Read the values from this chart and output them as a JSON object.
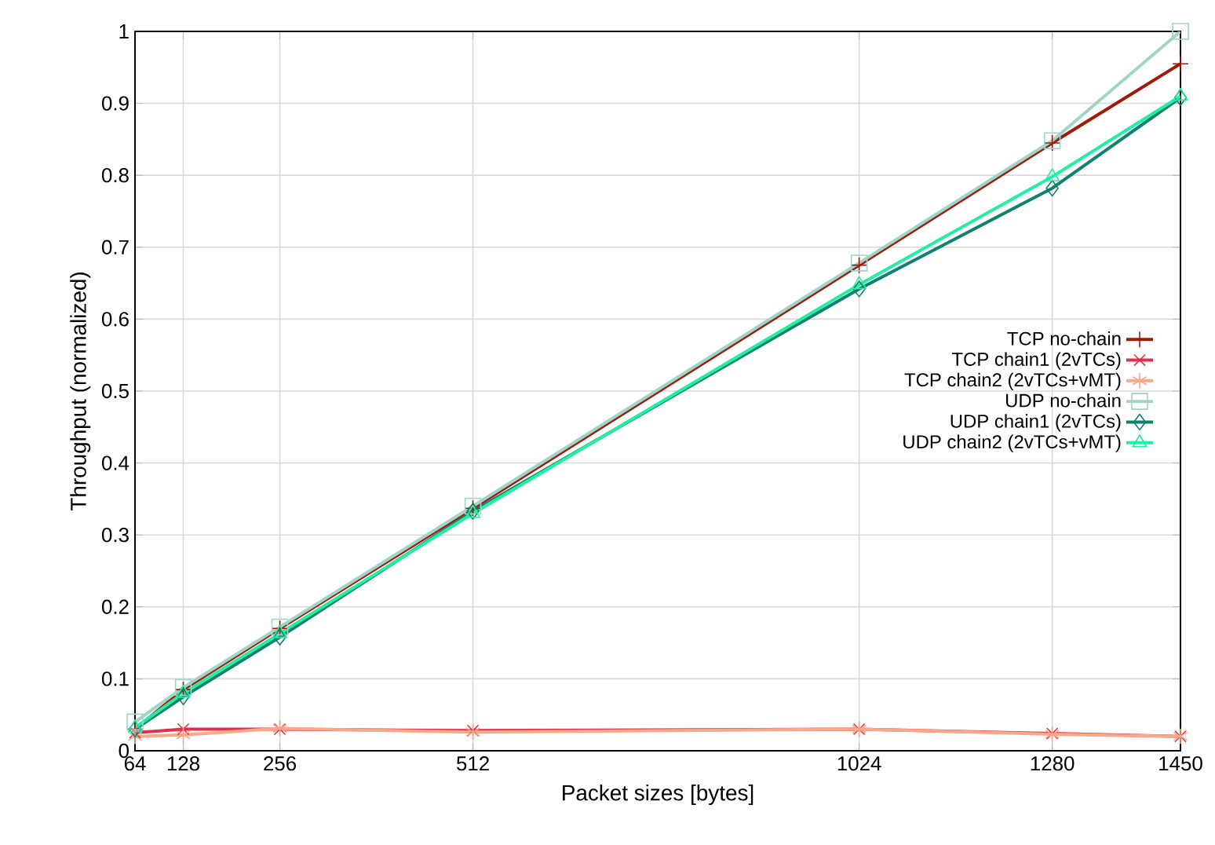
{
  "chart_data": {
    "type": "line",
    "xlabel": "Packet sizes [bytes]",
    "ylabel": "Throughput (normalized)",
    "x": [
      64,
      128,
      256,
      512,
      1024,
      1280,
      1450
    ],
    "xlim": [
      64,
      1450
    ],
    "ylim": [
      0,
      1
    ],
    "xticks": [
      64,
      128,
      256,
      512,
      1024,
      1280,
      1450
    ],
    "yticks": [
      0,
      0.1,
      0.2,
      0.3,
      0.4,
      0.5,
      0.6,
      0.7,
      0.8,
      0.9,
      1
    ],
    "grid": true,
    "legend": "right",
    "line_style": "solid",
    "series": [
      {
        "name": "TCP no-chain",
        "color": "#a01a0a",
        "marker": "cross",
        "values": [
          0.03,
          0.085,
          0.17,
          0.337,
          0.675,
          0.845,
          0.955
        ]
      },
      {
        "name": "TCP chain1 (2vTCs)",
        "color": "#e0304e",
        "marker": "cross",
        "values": [
          0.025,
          0.03,
          0.03,
          0.028,
          0.03,
          0.024,
          0.02
        ]
      },
      {
        "name": "TCP chain2 (2vTCs+vMT)",
        "color": "#f8a888",
        "marker": "cross",
        "values": [
          0.02,
          0.022,
          0.031,
          0.026,
          0.03,
          0.023,
          0.02
        ]
      },
      {
        "name": "UDP no-chain",
        "color": "#a0d4c8",
        "marker": "square",
        "values": [
          0.04,
          0.088,
          0.172,
          0.34,
          0.678,
          0.848,
          1.0
        ]
      },
      {
        "name": "UDP chain1 (2vTCs)",
        "color": "#108070",
        "marker": "diamond",
        "values": [
          0.03,
          0.075,
          0.158,
          0.333,
          0.642,
          0.782,
          0.908
        ]
      },
      {
        "name": "UDP chain2 (2vTCs+vMT)",
        "color": "#20f0a0",
        "marker": "triangle",
        "values": [
          0.032,
          0.08,
          0.163,
          0.33,
          0.648,
          0.798,
          0.91
        ]
      }
    ]
  }
}
